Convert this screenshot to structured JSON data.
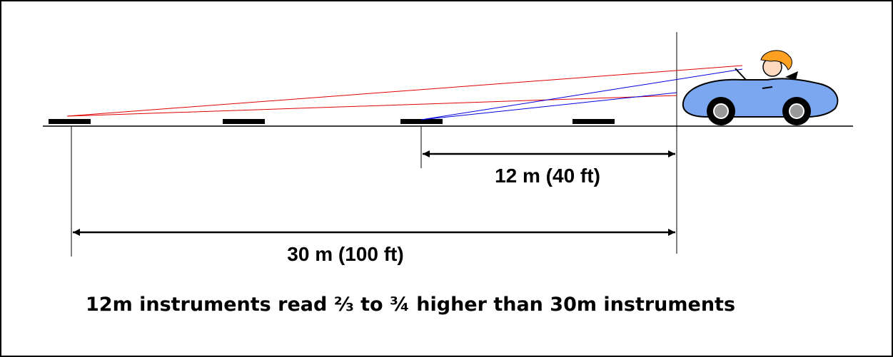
{
  "labels": {
    "near_distance": "12 m (40 ft)",
    "far_distance": "30 m (100 ft)",
    "caption": "12m instruments read ⅔ to ¾ higher than 30m instruments"
  }
}
